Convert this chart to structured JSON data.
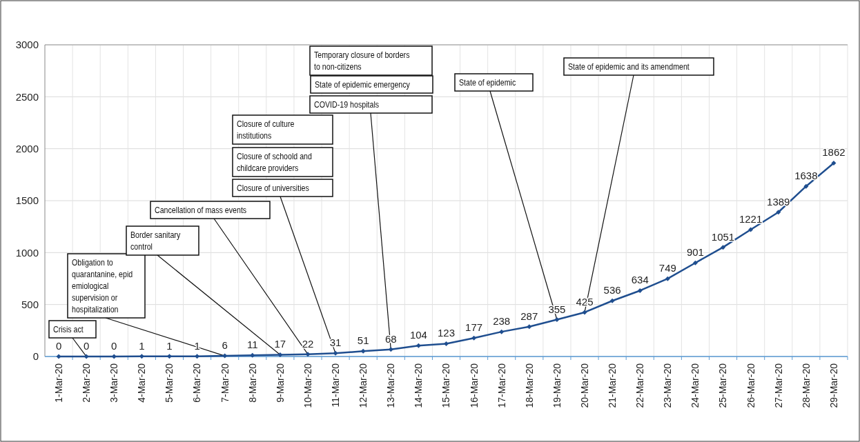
{
  "chart_data": {
    "type": "line",
    "categories": [
      "1-Mar-20",
      "2-Mar-20",
      "3-Mar-20",
      "4-Mar-20",
      "5-Mar-20",
      "6-Mar-20",
      "7-Mar-20",
      "8-Mar-20",
      "9-Mar-20",
      "10-Mar-20",
      "11-Mar-20",
      "12-Mar-20",
      "13-Mar-20",
      "14-Mar-20",
      "15-Mar-20",
      "16-Mar-20",
      "17-Mar-20",
      "18-Mar-20",
      "19-Mar-20",
      "20-Mar-20",
      "21-Mar-20",
      "22-Mar-20",
      "23-Mar-20",
      "24-Mar-20",
      "25-Mar-20",
      "26-Mar-20",
      "27-Mar-20",
      "28-Mar-20",
      "29-Mar-20"
    ],
    "series": [
      {
        "color": "#1f4e8f",
        "values": [
          0,
          0,
          0,
          1,
          1,
          1,
          6,
          11,
          17,
          22,
          31,
          51,
          68,
          104,
          123,
          177,
          238,
          287,
          355,
          425,
          536,
          634,
          749,
          901,
          1051,
          1221,
          1389,
          1638,
          1862
        ]
      }
    ],
    "ylim": [
      0,
      3000
    ],
    "yticks": [
      0,
      500,
      1000,
      1500,
      2000,
      2500,
      3000
    ],
    "grid": true,
    "data_labels": true,
    "marker": "diamond",
    "line_style": "solid",
    "annotations": [
      {
        "text": "Crisis act",
        "x": "2-Mar-20",
        "y": 0
      },
      {
        "text": "Obligation to quarantanine, epid emiological supervision or hospitalization",
        "x": "7-Mar-20",
        "y": 6
      },
      {
        "text": "Border sanitary control",
        "x": "9-Mar-20",
        "y": 17
      },
      {
        "text": "Cancellation of mass events",
        "x": "10-Mar-20",
        "y": 22
      },
      "Closure of culture institutions",
      "Closure of schoold and childcare providers",
      {
        "text": "Closure of universities",
        "x": "11-Mar-20",
        "y": 31
      },
      "Temporary closure of borders to non-citizens",
      "State of epidemic emergency",
      {
        "text": "COVID-19 hospitals",
        "x": "13-Mar-20",
        "y": 68
      },
      {
        "text": "State of epidemic",
        "x": "19-Mar-20",
        "y": 355
      },
      {
        "text": "State of epidemic and its amendment",
        "x": "20-Mar-20",
        "y": 425
      }
    ]
  }
}
